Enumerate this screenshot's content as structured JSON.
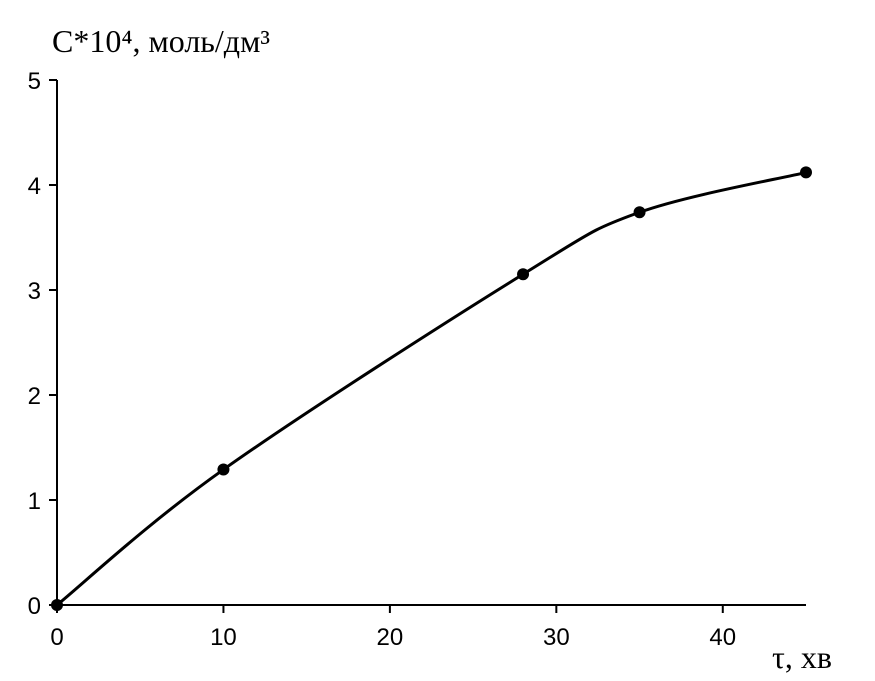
{
  "chart_data": {
    "type": "line",
    "y_label": "С*10⁴, моль/дм³",
    "x_label": "τ, хв",
    "x": [
      0,
      10,
      28,
      35,
      45
    ],
    "series": [
      {
        "color": "#000000",
        "values": [
          0,
          1.29,
          3.15,
          3.74,
          4.12
        ]
      }
    ],
    "xlim": [
      0,
      45
    ],
    "xticks": [
      0,
      10,
      20,
      30,
      40
    ],
    "ylim": [
      0,
      5
    ],
    "yticks": [
      0,
      1,
      2,
      3,
      4,
      5
    ],
    "markers": true,
    "smooth": true
  }
}
